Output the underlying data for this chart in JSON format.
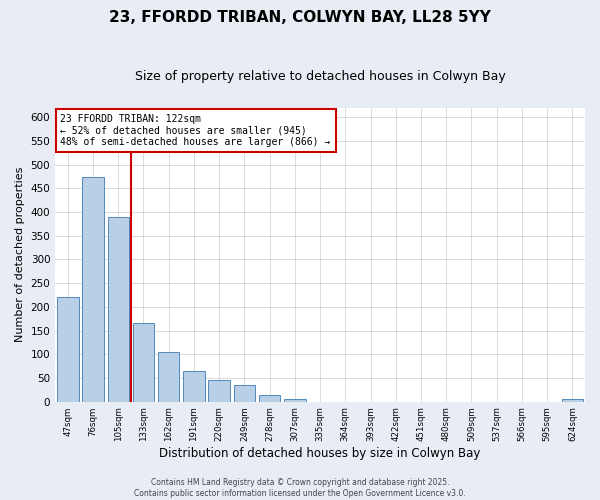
{
  "title1": "23, FFORDD TRIBAN, COLWYN BAY, LL28 5YY",
  "title2": "Size of property relative to detached houses in Colwyn Bay",
  "xlabel": "Distribution of detached houses by size in Colwyn Bay",
  "ylabel": "Number of detached properties",
  "categories": [
    "47sqm",
    "76sqm",
    "105sqm",
    "133sqm",
    "162sqm",
    "191sqm",
    "220sqm",
    "249sqm",
    "278sqm",
    "307sqm",
    "335sqm",
    "364sqm",
    "393sqm",
    "422sqm",
    "451sqm",
    "480sqm",
    "509sqm",
    "537sqm",
    "566sqm",
    "595sqm",
    "624sqm"
  ],
  "values": [
    220,
    475,
    390,
    165,
    105,
    65,
    45,
    35,
    15,
    5,
    0,
    0,
    0,
    0,
    0,
    0,
    0,
    0,
    0,
    0,
    5
  ],
  "bar_color": "#b8cfe8",
  "bar_edge_color": "#5588bb",
  "ref_line_x": 2.5,
  "ref_line_color": "#cc0000",
  "annotation_text": "23 FFORDD TRIBAN: 122sqm\n← 52% of detached houses are smaller (945)\n48% of semi-detached houses are larger (866) →",
  "annotation_box_color": "#ffffff",
  "annotation_box_edge_color": "#cc0000",
  "footer1": "Contains HM Land Registry data © Crown copyright and database right 2025.",
  "footer2": "Contains public sector information licensed under the Open Government Licence v3.0.",
  "bg_color": "#e8edf5",
  "plot_bg_color": "#ffffff",
  "ylim": [
    0,
    620
  ],
  "yticks": [
    0,
    50,
    100,
    150,
    200,
    250,
    300,
    350,
    400,
    450,
    500,
    550,
    600
  ],
  "grid_color": "#cccccc",
  "title1_fontsize": 11,
  "title2_fontsize": 9
}
